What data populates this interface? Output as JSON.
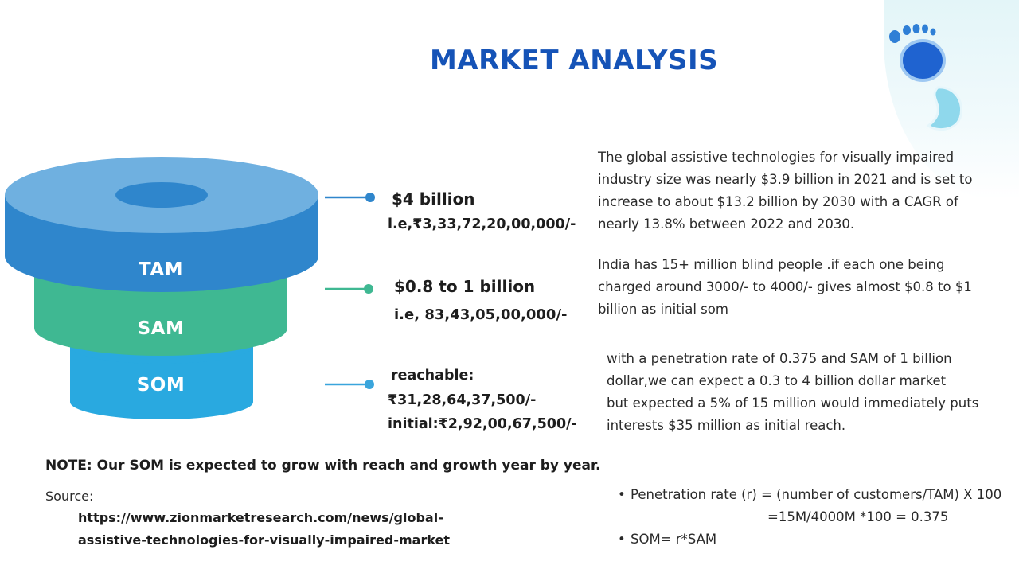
{
  "title": "MARKET ANALYSIS",
  "colors": {
    "title": "#1553b7",
    "tam": "#2f86cc",
    "tam_top": "#6fb0e0",
    "sam": "#3fb892",
    "som": "#29a9e0",
    "connector_tam": "#2f86cc",
    "connector_sam": "#3fb892",
    "connector_som": "#3aa5dc"
  },
  "logo": {
    "icon": "footprint-icon"
  },
  "funnel": {
    "tam_label": "TAM",
    "sam_label": "SAM",
    "som_label": "SOM"
  },
  "values": {
    "tam_usd": "$4 billion",
    "tam_inr": "i.e,₹3,33,72,20,00,000/-",
    "sam_usd": "$0.8 to 1 billion",
    "sam_inr": "i.e, 83,43,05,00,000/-",
    "som_reachable_label": "reachable:",
    "som_reachable_inr": "₹31,28,64,37,500/-",
    "som_initial": "initial:₹2,92,00,67,500/-"
  },
  "paragraphs": {
    "tam": [
      "The global assistive technologies for visually impaired",
      "industry size was nearly $3.9 billion in 2021 and is set to",
      "increase to about $13.2 billion by 2030 with a CAGR of",
      "nearly 13.8% between 2022 and 2030."
    ],
    "sam": [
      "India has 15+ million blind people .if each one being",
      "charged around 3000/- to 4000/- gives almost $0.8 to $1",
      "billion as initial som"
    ],
    "som": [
      "with a penetration rate of 0.375 and SAM of 1 billion",
      "dollar,we can expect a 0.3 to 4 billion dollar market",
      "but expected a 5% of 15 million would immediately puts",
      "interests $35 million as initial reach."
    ]
  },
  "note": "NOTE: Our SOM is expected to grow with reach and growth year by year.",
  "source": {
    "label": "Source:",
    "link_line1": "https://www.zionmarketresearch.com/news/global-",
    "link_line2": "assistive-technologies-for-visually-impaired-market"
  },
  "formulas": {
    "penetration": "Penetration rate (r) = (number of customers/TAM) X 100",
    "penetration_calc": "=15M/4000M  *100 = 0.375",
    "som": "SOM= r*SAM"
  }
}
